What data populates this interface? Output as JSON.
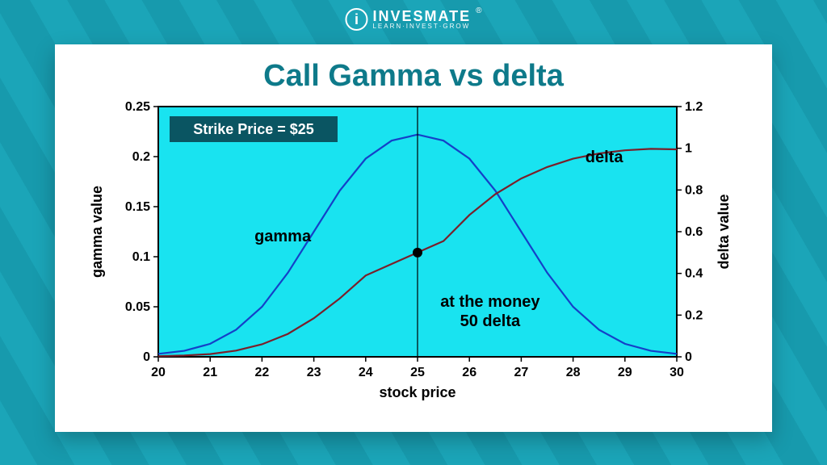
{
  "brand": {
    "name": "INVESMATE",
    "tagline": "LEARN·INVEST·GROW",
    "registered": "®"
  },
  "chart": {
    "type": "line",
    "title": "Call Gamma vs delta",
    "title_color": "#0e7a8a",
    "title_fontsize": 38,
    "background_color": "#19e3f0",
    "card_color": "#ffffff",
    "outer_bg_color": "#1ba5b8",
    "axes": {
      "x": {
        "label": "stock price",
        "min": 20,
        "max": 30,
        "ticks": [
          20,
          21,
          22,
          23,
          24,
          25,
          26,
          27,
          28,
          29,
          30
        ]
      },
      "yL": {
        "label": "gamma value",
        "min": 0,
        "max": 0.25,
        "ticks": [
          0,
          0.05,
          0.1,
          0.15,
          0.2,
          0.25
        ]
      },
      "yR": {
        "label": "delta value",
        "min": 0,
        "max": 1.2,
        "ticks": [
          0,
          0.2,
          0.4,
          0.6,
          0.8,
          1,
          1.2
        ]
      }
    },
    "tick_color": "#000000",
    "tick_fontsize": 16,
    "axis_label_fontsize": 18,
    "border_color": "#000000",
    "strike_badge": {
      "text": "Strike Price = $25",
      "bg": "#0a5562",
      "fg": "#ffffff",
      "fontsize": 18
    },
    "marker": {
      "x": 25,
      "delta": 0.5,
      "radius": 6,
      "color": "#000000"
    },
    "vline": {
      "x": 25,
      "color": "#000000",
      "width": 1.2
    },
    "annotations": {
      "gamma_label": "gamma",
      "delta_label": "delta",
      "atm_line1": "at the money",
      "atm_line2": "50 delta",
      "fontsize": 20,
      "color": "#000000"
    },
    "series": {
      "gamma": {
        "axis": "yL",
        "color": "#1440c8",
        "width": 2.2,
        "points": [
          [
            20,
            0.003
          ],
          [
            20.5,
            0.006
          ],
          [
            21,
            0.013
          ],
          [
            21.5,
            0.027
          ],
          [
            22,
            0.05
          ],
          [
            22.5,
            0.084
          ],
          [
            23,
            0.125
          ],
          [
            23.5,
            0.166
          ],
          [
            24,
            0.198
          ],
          [
            24.5,
            0.216
          ],
          [
            25,
            0.222
          ],
          [
            25.5,
            0.216
          ],
          [
            26,
            0.198
          ],
          [
            26.5,
            0.166
          ],
          [
            27,
            0.125
          ],
          [
            27.5,
            0.084
          ],
          [
            28,
            0.05
          ],
          [
            28.5,
            0.027
          ],
          [
            29,
            0.013
          ],
          [
            29.5,
            0.006
          ],
          [
            30,
            0.003
          ]
        ]
      },
      "delta": {
        "axis": "yR",
        "color": "#7a1f2a",
        "width": 2.2,
        "points": [
          [
            20,
            0.003
          ],
          [
            20.5,
            0.006
          ],
          [
            21,
            0.013
          ],
          [
            21.5,
            0.03
          ],
          [
            22,
            0.06
          ],
          [
            22.5,
            0.11
          ],
          [
            23,
            0.185
          ],
          [
            23.5,
            0.28
          ],
          [
            24,
            0.39
          ],
          [
            24.5,
            0.445
          ],
          [
            25,
            0.5
          ],
          [
            25.5,
            0.555
          ],
          [
            26,
            0.68
          ],
          [
            26.5,
            0.78
          ],
          [
            27,
            0.855
          ],
          [
            27.5,
            0.91
          ],
          [
            28,
            0.95
          ],
          [
            28.5,
            0.975
          ],
          [
            29,
            0.99
          ],
          [
            29.5,
            0.997
          ],
          [
            30,
            0.995
          ]
        ]
      }
    }
  }
}
